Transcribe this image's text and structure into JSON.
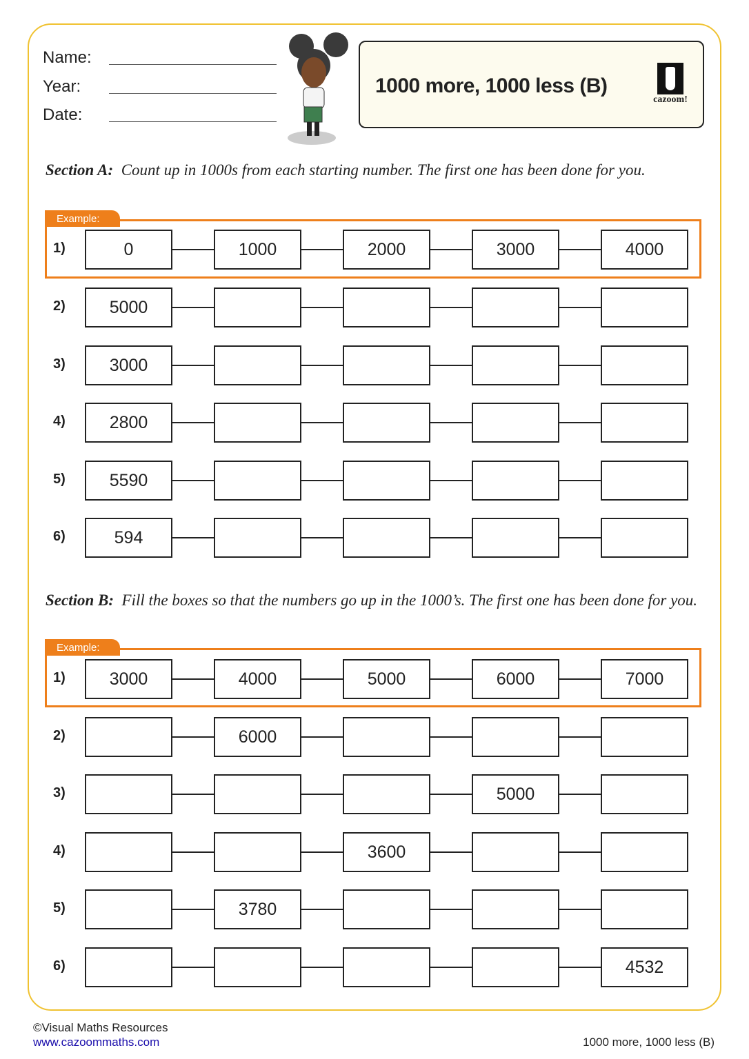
{
  "header": {
    "name_label": "Name:",
    "year_label": "Year:",
    "date_label": "Date:",
    "title": "1000 more, 1000 less (B)",
    "logo_text": "cazoom!"
  },
  "colors": {
    "border": "#f0c230",
    "accent": "#ee7f1b",
    "title_bg": "#fdfbee"
  },
  "sections": [
    {
      "heading": "Section A:",
      "instruction": "Count up in 1000s from each starting number. The first one has been done for you.",
      "example_label": "Example:",
      "rows": [
        {
          "num": "1)",
          "cells": [
            "0",
            "1000",
            "2000",
            "3000",
            "4000"
          ]
        },
        {
          "num": "2)",
          "cells": [
            "5000",
            "",
            "",
            "",
            ""
          ]
        },
        {
          "num": "3)",
          "cells": [
            "3000",
            "",
            "",
            "",
            ""
          ]
        },
        {
          "num": "4)",
          "cells": [
            "2800",
            "",
            "",
            "",
            ""
          ]
        },
        {
          "num": "5)",
          "cells": [
            "5590",
            "",
            "",
            "",
            ""
          ]
        },
        {
          "num": "6)",
          "cells": [
            "594",
            "",
            "",
            "",
            ""
          ]
        }
      ]
    },
    {
      "heading": "Section B:",
      "instruction": "Fill the boxes so that the numbers go up in the 1000’s. The first one has been done for you.",
      "example_label": "Example:",
      "rows": [
        {
          "num": "1)",
          "cells": [
            "3000",
            "4000",
            "5000",
            "6000",
            "7000"
          ]
        },
        {
          "num": "2)",
          "cells": [
            "",
            "6000",
            "",
            "",
            ""
          ]
        },
        {
          "num": "3)",
          "cells": [
            "",
            "",
            "",
            "5000",
            ""
          ]
        },
        {
          "num": "4)",
          "cells": [
            "",
            "",
            "3600",
            "",
            ""
          ]
        },
        {
          "num": "5)",
          "cells": [
            "",
            "3780",
            "",
            "",
            ""
          ]
        },
        {
          "num": "6)",
          "cells": [
            "",
            "",
            "",
            "",
            "4532"
          ]
        }
      ]
    }
  ],
  "footer": {
    "copyright": "©Visual Maths Resources",
    "link": "www.cazoommaths.com",
    "doc_title": "1000 more, 1000 less (B)"
  }
}
